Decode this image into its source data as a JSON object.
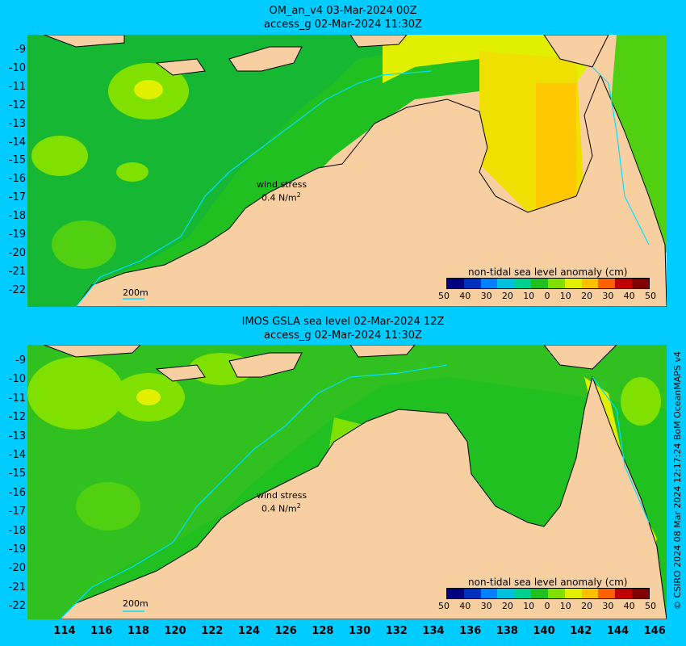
{
  "top": {
    "title1": "OM_an_v4  03-Mar-2024 00Z",
    "title2": "access_g 02-Mar-2024 11:30Z",
    "wind1": "wind stress",
    "wind2": "0.4 N/m",
    "wind_sup": "2",
    "scale": "200m",
    "cbar_title": "non-tidal sea level anomaly (cm)"
  },
  "bottom": {
    "title1": "IMOS GSLA sea level  02-Mar-2024 12Z",
    "title2": "access_g 02-Mar-2024 11:30Z",
    "wind1": "wind stress",
    "wind2": "0.4 N/m",
    "wind_sup": "2",
    "scale": "200m",
    "cbar_title": "non-tidal sea level anomaly (cm)"
  },
  "y_ticks": [
    "-9",
    "-10",
    "-11",
    "-12",
    "-13",
    "-14",
    "-15",
    "-16",
    "-17",
    "-18",
    "-19",
    "-20",
    "-21",
    "-22"
  ],
  "x_ticks": [
    "114",
    "116",
    "118",
    "120",
    "122",
    "124",
    "126",
    "128",
    "130",
    "132",
    "134",
    "136",
    "138",
    "140",
    "142",
    "144",
    "146"
  ],
  "cbar_ticks": [
    "50",
    "40",
    "30",
    "20",
    "10",
    "0",
    "10",
    "20",
    "30",
    "40",
    "50"
  ],
  "cbar_colors": [
    "#000080",
    "#0030c0",
    "#0080ff",
    "#00c0e0",
    "#00d090",
    "#20c020",
    "#80e000",
    "#e0f000",
    "#ffc000",
    "#ff6000",
    "#c00000",
    "#800000"
  ],
  "credit": "© CSIRO 2024   08 Mar 2024 12:17:24 BoM OceanMAPS v4"
}
